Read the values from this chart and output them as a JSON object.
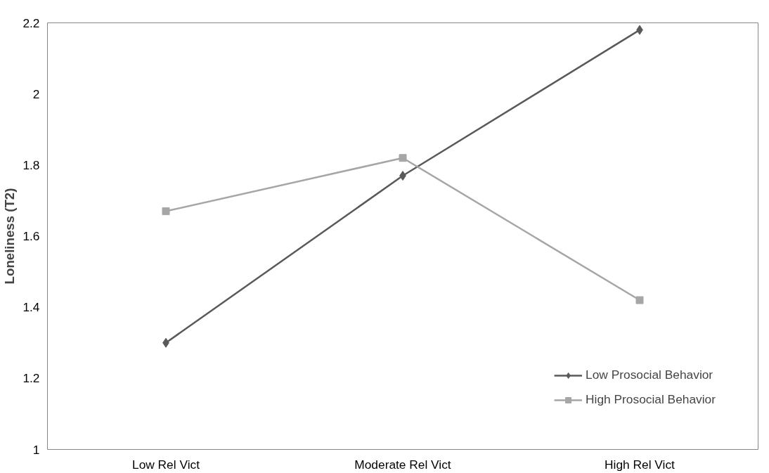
{
  "chart_data": {
    "type": "line",
    "ylabel": "Loneliness (T2)",
    "categories": [
      "Low Rel Vict",
      "Moderate Rel Vict",
      "High Rel Vict"
    ],
    "series": [
      {
        "name": "Low Prosocial Behavior",
        "color": "#595959",
        "marker": "diamond",
        "values": [
          1.3,
          1.77,
          2.18
        ]
      },
      {
        "name": "High Prosocial Behavior",
        "color": "#a6a6a6",
        "marker": "square",
        "values": [
          1.67,
          1.82,
          1.42
        ]
      }
    ],
    "ylim": [
      1,
      2.2
    ],
    "yticks": [
      1,
      1.2,
      1.4,
      1.6,
      1.8,
      2,
      2.2
    ],
    "grid": false,
    "legend": "bottom right",
    "line_style": "solid"
  }
}
